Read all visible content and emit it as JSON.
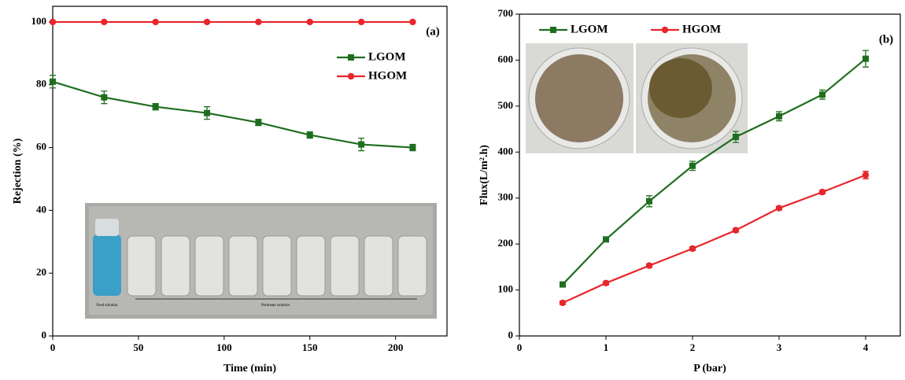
{
  "chart_data": [
    {
      "type": "line",
      "title": "(a)",
      "xlabel": "Time (min)",
      "ylabel": "Rejection (%)",
      "x": [
        0,
        30,
        60,
        90,
        120,
        150,
        180,
        210
      ],
      "series": [
        {
          "name": "LGOM",
          "color": "#1f6e1f",
          "marker": "square",
          "values": [
            81,
            76,
            73,
            71,
            68,
            64,
            61,
            60
          ],
          "errors": [
            2,
            2,
            1,
            2,
            1,
            1,
            2,
            1
          ]
        },
        {
          "name": "HGOM",
          "color": "#e8262c",
          "marker": "circle",
          "values": [
            100,
            100,
            100,
            100,
            100,
            100,
            100,
            100
          ]
        }
      ],
      "xlim": [
        0,
        230
      ],
      "xticks": [
        0,
        50,
        100,
        150,
        200
      ],
      "ylim": [
        0,
        105
      ],
      "yticks": [
        0,
        20,
        40,
        60,
        80,
        100
      ],
      "legend": "upper right",
      "annotations": [
        "Feed solution",
        "Permeate solution"
      ]
    },
    {
      "type": "line",
      "title": "(b)",
      "xlabel": "P (bar)",
      "ylabel": "Flux(L/m².h)",
      "x": [
        0.5,
        1,
        1.5,
        2,
        2.5,
        3,
        3.5,
        4
      ],
      "series": [
        {
          "name": "LGOM",
          "color": "#1f6e1f",
          "marker": "square",
          "values": [
            112,
            210,
            293,
            370,
            433,
            478,
            525,
            603
          ],
          "errors": [
            5,
            5,
            12,
            10,
            12,
            10,
            10,
            18
          ]
        },
        {
          "name": "HGOM",
          "color": "#e8262c",
          "marker": "circle",
          "values": [
            72,
            115,
            153,
            190,
            230,
            278,
            313,
            350
          ],
          "errors": [
            4,
            4,
            4,
            4,
            4,
            4,
            4,
            8
          ]
        }
      ],
      "xlim": [
        0,
        4.4
      ],
      "xticks": [
        0,
        1,
        2,
        3,
        4
      ],
      "ylim": [
        0,
        700
      ],
      "yticks": [
        0,
        100,
        200,
        300,
        400,
        500,
        600,
        700
      ],
      "legend": "upper left"
    }
  ]
}
